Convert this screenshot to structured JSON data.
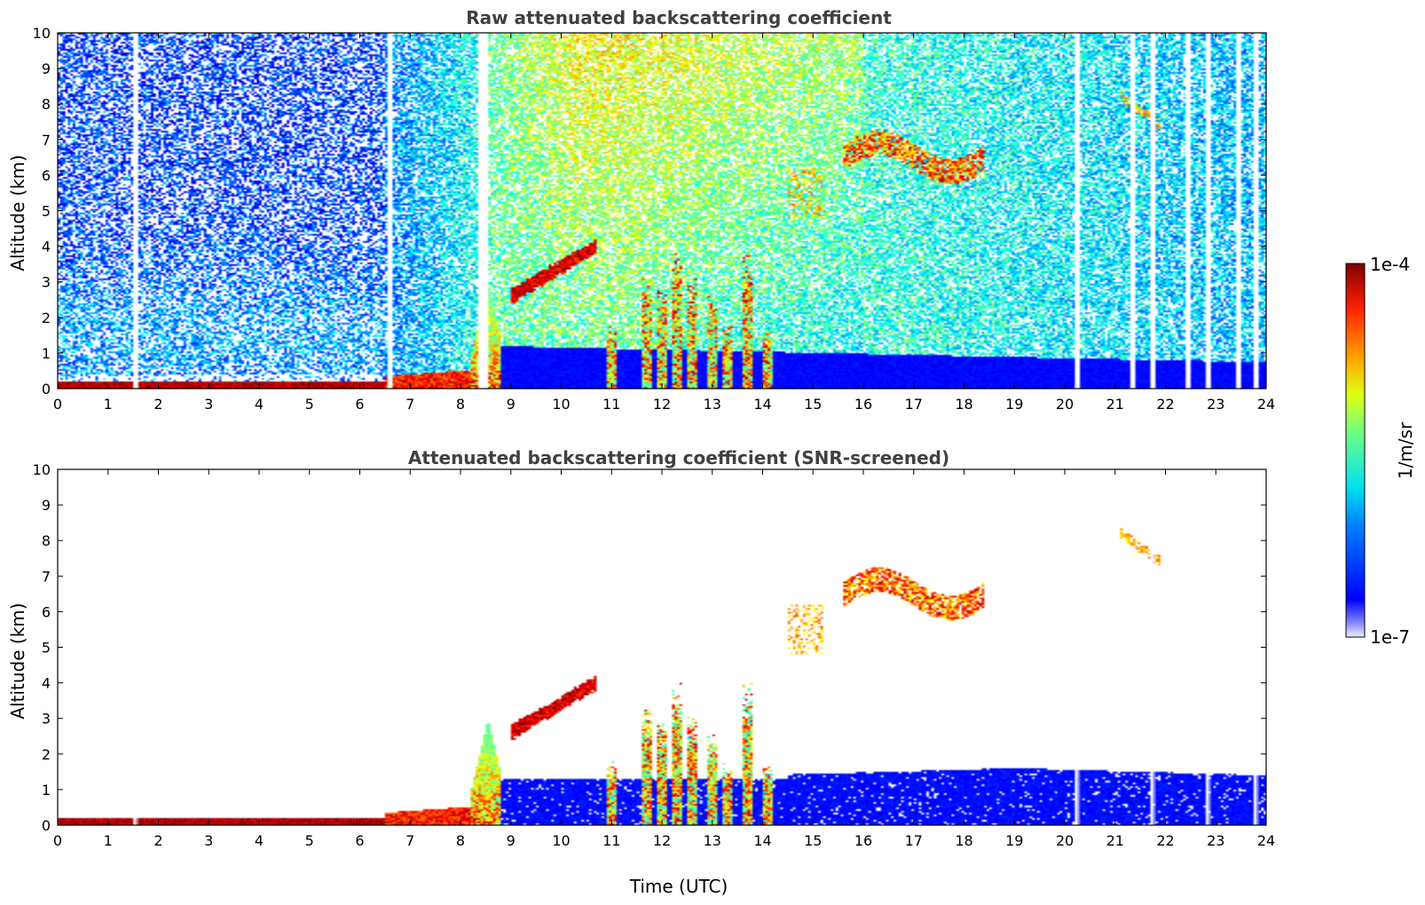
{
  "chart_data": [
    {
      "type": "heatmap",
      "title": "Raw attenuated backscattering coefficient",
      "xlabel": "",
      "ylabel": "Altitude (km)",
      "xlim": [
        0,
        24
      ],
      "ylim": [
        0,
        10
      ],
      "xticks": [
        "0",
        "1",
        "2",
        "3",
        "4",
        "5",
        "6",
        "7",
        "8",
        "9",
        "10",
        "11",
        "12",
        "13",
        "14",
        "15",
        "16",
        "17",
        "18",
        "19",
        "20",
        "21",
        "22",
        "23",
        "24"
      ],
      "yticks": [
        "0",
        "1",
        "2",
        "3",
        "4",
        "5",
        "6",
        "7",
        "8",
        "9",
        "10"
      ],
      "colorscale": "jet",
      "features": [
        {
          "kind": "surface_layer",
          "t0": 0,
          "t1": 6.5,
          "z0": 0,
          "z1": 0.2,
          "level": 0.97
        },
        {
          "kind": "boundary_layer_growth",
          "t0": 6.5,
          "t1": 8.3,
          "z0": 0,
          "z1": 0.5,
          "level": 0.8
        },
        {
          "kind": "convective_plume",
          "t0": 8.2,
          "t1": 8.8,
          "z0": 0,
          "z1": 3.0,
          "level": 0.6
        },
        {
          "kind": "mid_cloud",
          "t0": 9.0,
          "t1": 10.7,
          "z0": 2.6,
          "z1": 4.0,
          "level": 0.95
        },
        {
          "kind": "cumulus_columns",
          "t0": 11.0,
          "t1": 14.3,
          "z0": 0,
          "z1": 4.2,
          "level": 0.7
        },
        {
          "kind": "high_cloud",
          "t0": 14.5,
          "t1": 15.2,
          "z0": 4.8,
          "z1": 6.2,
          "level": 0.65
        },
        {
          "kind": "cirrus",
          "t0": 15.6,
          "t1": 18.4,
          "z0": 5.8,
          "z1": 7.2,
          "level": 0.85
        },
        {
          "kind": "cirrus",
          "t0": 21.1,
          "t1": 21.9,
          "z0": 7.4,
          "z1": 8.3,
          "level": 0.7
        }
      ]
    },
    {
      "type": "heatmap",
      "title": "Attenuated backscattering coefficient (SNR-screened)",
      "xlabel": "Time (UTC)",
      "ylabel": "Altitude (km)",
      "xlim": [
        0,
        24
      ],
      "ylim": [
        0,
        10
      ],
      "xticks": [
        "0",
        "1",
        "2",
        "3",
        "4",
        "5",
        "6",
        "7",
        "8",
        "9",
        "10",
        "11",
        "12",
        "13",
        "14",
        "15",
        "16",
        "17",
        "18",
        "19",
        "20",
        "21",
        "22",
        "23",
        "24"
      ],
      "yticks": [
        "0",
        "1",
        "2",
        "3",
        "4",
        "5",
        "6",
        "7",
        "8",
        "9",
        "10"
      ],
      "colorscale": "jet"
    }
  ],
  "colorbar": {
    "label": "1/m/sr",
    "max_label": "1e-4",
    "min_label": "1e-7",
    "max": 0.0001,
    "min": 1e-07,
    "scale": "log"
  },
  "colors": {
    "jet_low": "#00007f",
    "jet_mid": "#7fff7f",
    "jet_high": "#7f0000",
    "title": "#404040"
  }
}
